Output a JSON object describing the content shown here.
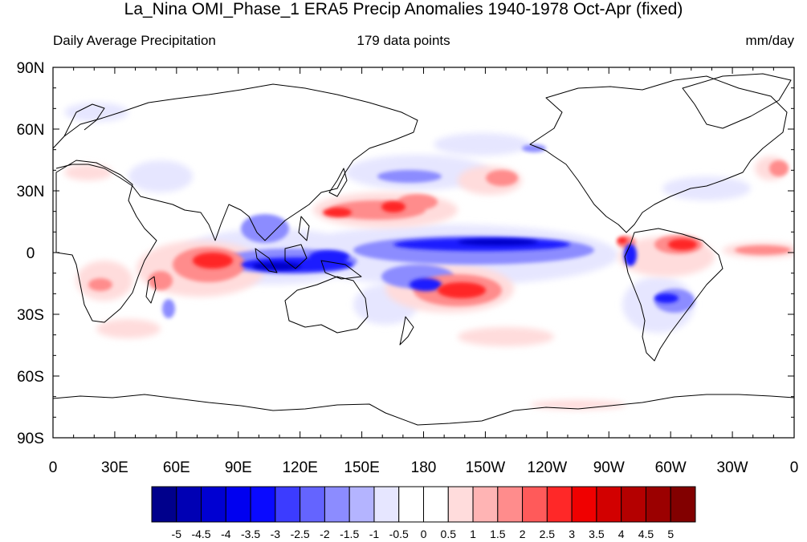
{
  "title": "La_Nina OMI_Phase_1 ERA5 Precip Anomalies 1940-1978 Oct-Apr (fixed)",
  "left_subtitle": "Daily Average Precipitation",
  "center_subtitle": "179 data points",
  "right_subtitle": "mm/day",
  "lat_labels": [
    "90N",
    "60N",
    "30N",
    "0",
    "30S",
    "60S",
    "90S"
  ],
  "lon_labels": [
    "0",
    "30E",
    "60E",
    "90E",
    "120E",
    "150E",
    "180",
    "150W",
    "120W",
    "90W",
    "60W",
    "30W",
    "0"
  ],
  "colorbar": {
    "colors": [
      "#00008c",
      "#0000b4",
      "#0000d2",
      "#0000f0",
      "#0a0aff",
      "#3c3cff",
      "#6464ff",
      "#8c8cff",
      "#b4b4ff",
      "#e6e6ff",
      "#ffffff",
      "#ffffff",
      "#ffdcdc",
      "#ffb4b4",
      "#ff8c8c",
      "#ff5a5a",
      "#ff2828",
      "#f00000",
      "#d20000",
      "#b40000",
      "#9b0000",
      "#820000"
    ],
    "tick_labels": [
      "-5",
      "-4.5",
      "-4",
      "-3.5",
      "-3",
      "-2.5",
      "-2",
      "-1.5",
      "-1",
      "-0.5",
      "0",
      "0.5",
      "1",
      "1.5",
      "2",
      "2.5",
      "3",
      "3.5",
      "4",
      "4.5",
      "5"
    ]
  },
  "colors": {
    "coast": "#000000",
    "frame": "#000000"
  }
}
